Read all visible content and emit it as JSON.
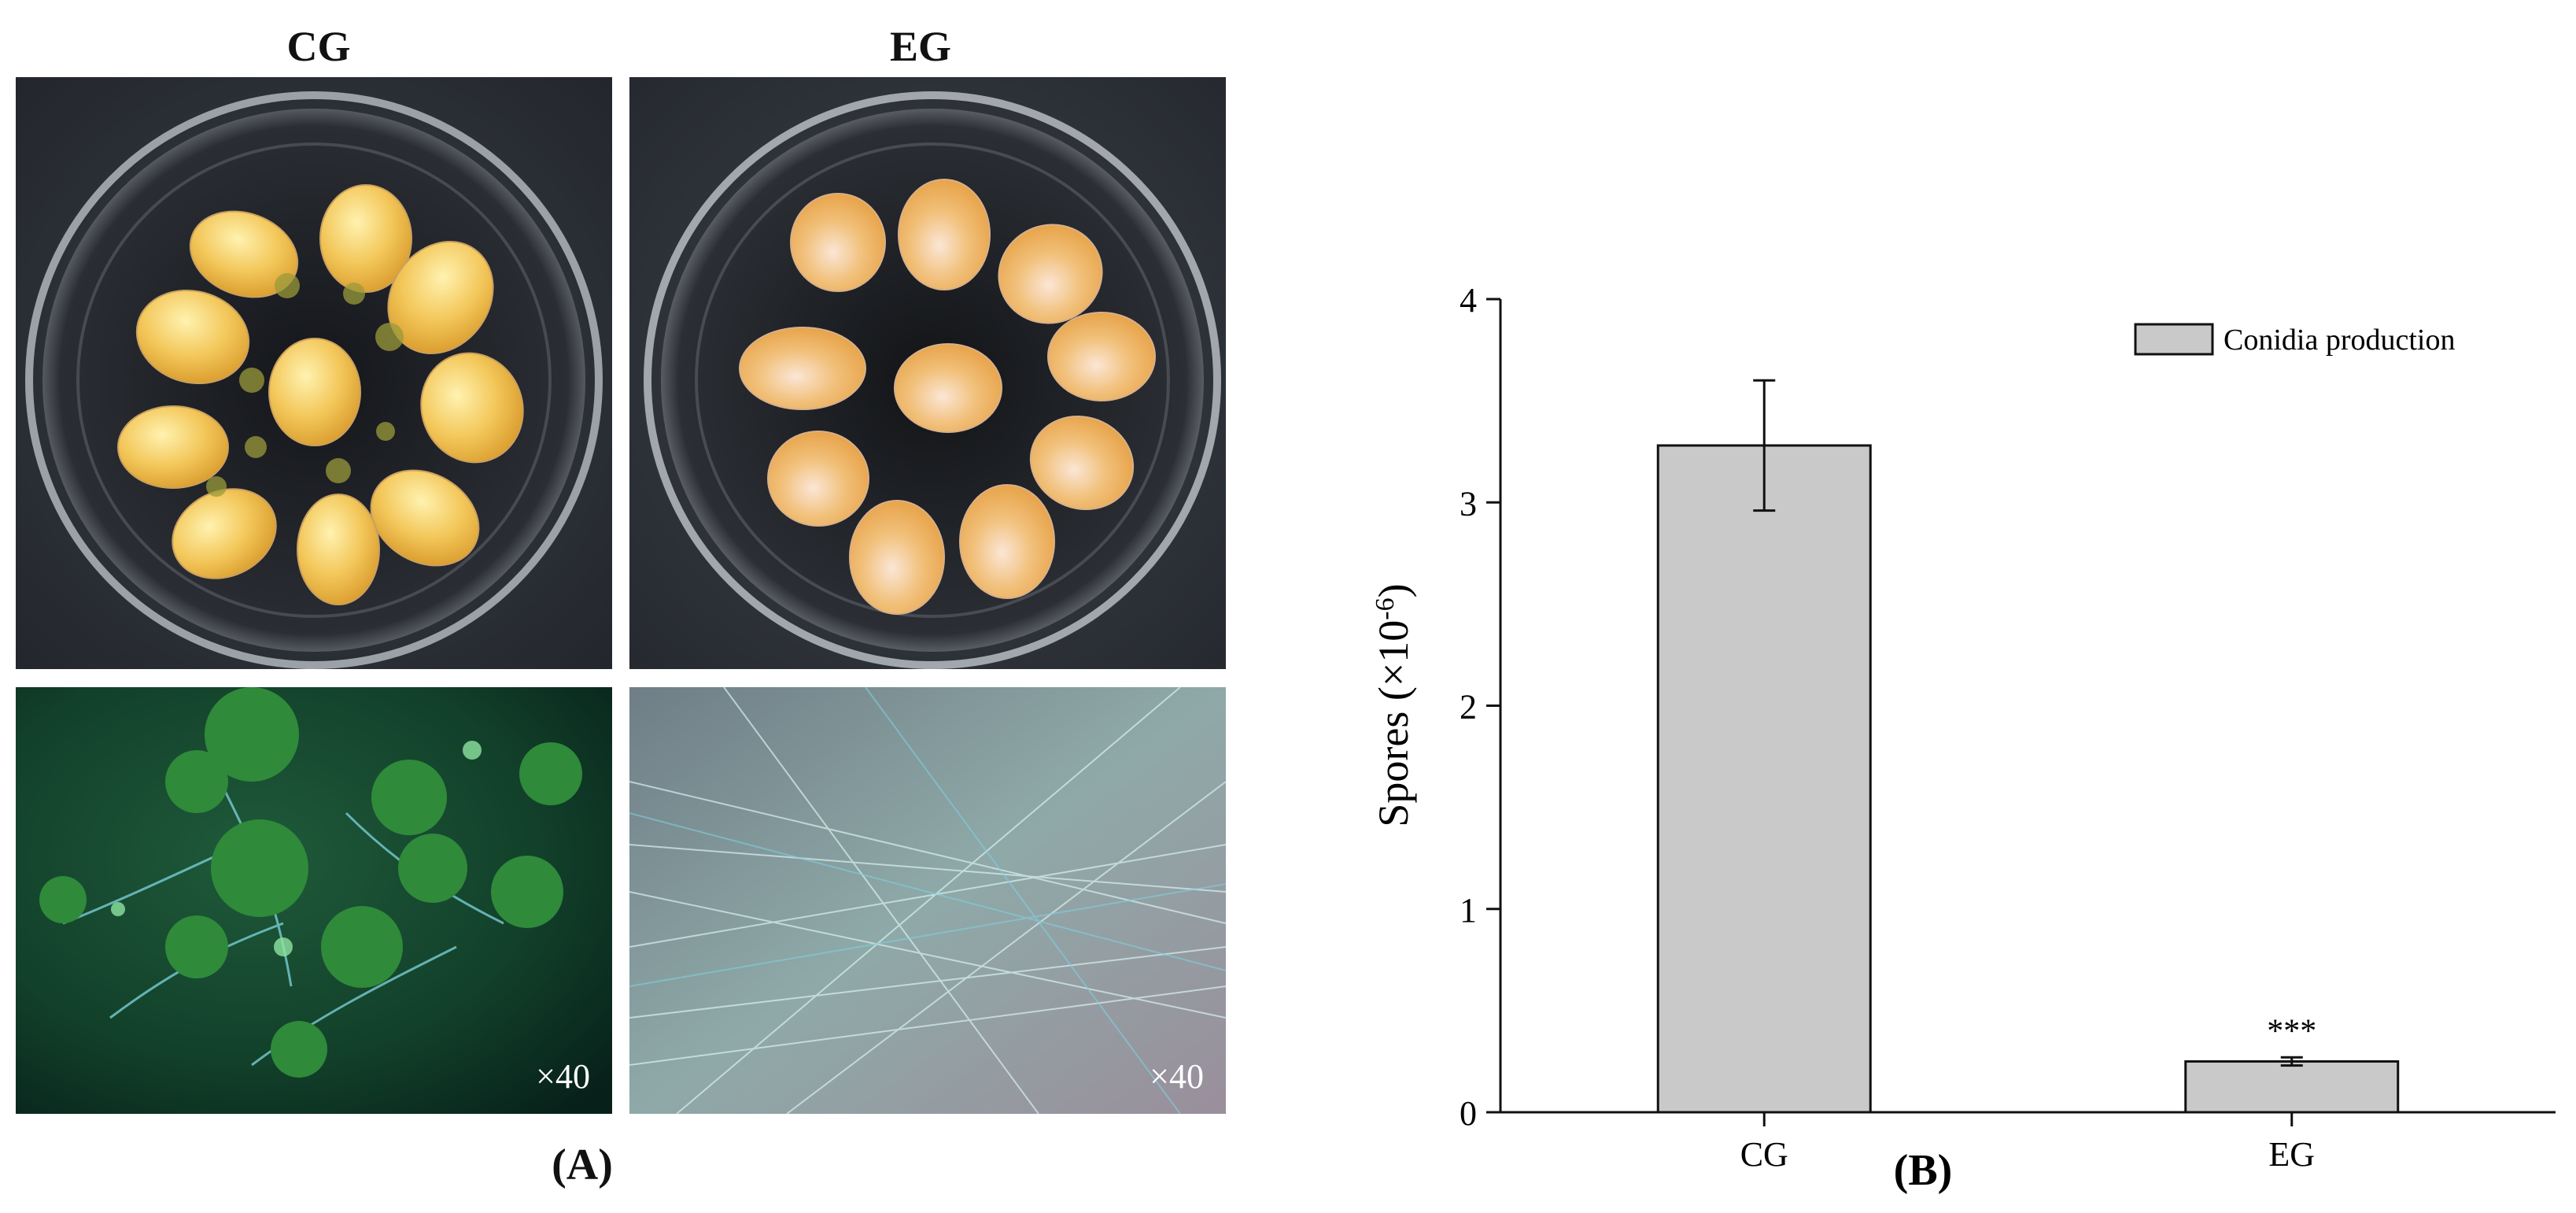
{
  "panel_a": {
    "columns": [
      "CG",
      "EG"
    ],
    "magnification_cg": "×40",
    "magnification_eg": "×40",
    "label": "(A)"
  },
  "panel_b": {
    "label": "(B)"
  },
  "chart_data": {
    "type": "bar",
    "title": "",
    "categories": [
      "CG",
      "EG"
    ],
    "series": [
      {
        "name": "Conidia production",
        "values": [
          3.28,
          0.25
        ],
        "error": [
          0.32,
          0.02
        ]
      }
    ],
    "significance": [
      "",
      "***"
    ],
    "xlabel": "",
    "ylabel": "Spores (×10",
    "ylabel_exp": "-6",
    "ylabel_close": ")",
    "ylim": [
      0,
      4
    ],
    "yticks": [
      "0",
      "1",
      "2",
      "3",
      "4"
    ],
    "legend": "Conidia production",
    "legend_position": "top-right",
    "colors": {
      "bar": "#c9c9c9",
      "axis": "#111111"
    }
  }
}
